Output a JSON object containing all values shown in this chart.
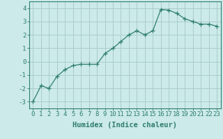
{
  "x": [
    0,
    1,
    2,
    3,
    4,
    5,
    6,
    7,
    8,
    9,
    10,
    11,
    12,
    13,
    14,
    15,
    16,
    17,
    18,
    19,
    20,
    21,
    22,
    23
  ],
  "y": [
    -3.0,
    -1.8,
    -2.0,
    -1.1,
    -0.6,
    -0.3,
    -0.2,
    -0.2,
    -0.2,
    0.6,
    1.0,
    1.5,
    2.0,
    2.3,
    2.0,
    2.3,
    3.9,
    3.85,
    3.6,
    3.2,
    3.0,
    2.8,
    2.8,
    2.65
  ],
  "line_color": "#2e7d6e",
  "marker": "+",
  "marker_size": 4,
  "bg_color": "#cceaea",
  "grid_color": "#aacccc",
  "xlabel": "Humidex (Indice chaleur)",
  "xlim": [
    -0.5,
    23.5
  ],
  "ylim": [
    -3.5,
    4.5
  ],
  "yticks": [
    -3,
    -2,
    -1,
    0,
    1,
    2,
    3,
    4
  ],
  "xticks": [
    0,
    1,
    2,
    3,
    4,
    5,
    6,
    7,
    8,
    9,
    10,
    11,
    12,
    13,
    14,
    15,
    16,
    17,
    18,
    19,
    20,
    21,
    22,
    23
  ],
  "tick_color": "#2e7d6e",
  "label_color": "#2e7d6e",
  "font_size": 6.5
}
